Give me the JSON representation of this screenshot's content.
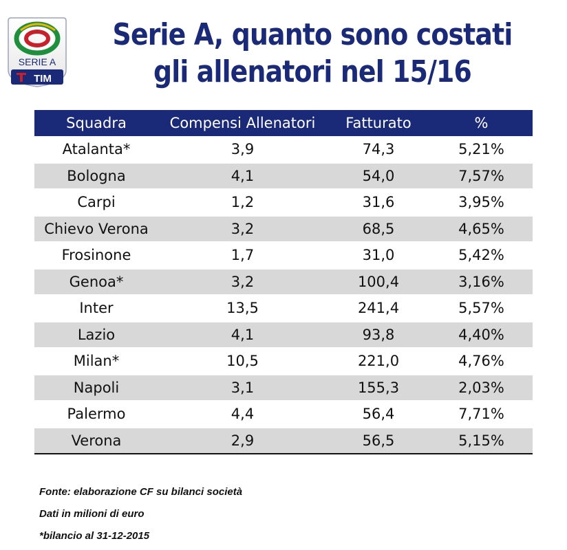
{
  "header": {
    "title_line1": "Serie A, quanto sono costati",
    "title_line2": "gli allenatori nel 15/16",
    "logo_text": "SERIE A",
    "logo_sponsor": "TIM"
  },
  "chart_data": {
    "type": "table",
    "columns": [
      "Squadra",
      "Compensi Allenatori",
      "Fatturato",
      "%"
    ],
    "rows": [
      [
        "Atalanta*",
        "3,9",
        "74,3",
        "5,21%"
      ],
      [
        "Bologna",
        "4,1",
        "54,0",
        "7,57%"
      ],
      [
        "Carpi",
        "1,2",
        "31,6",
        "3,95%"
      ],
      [
        "Chievo Verona",
        "3,2",
        "68,5",
        "4,65%"
      ],
      [
        "Frosinone",
        "1,7",
        "31,0",
        "5,42%"
      ],
      [
        "Genoa*",
        "3,2",
        "100,4",
        "3,16%"
      ],
      [
        "Inter",
        "13,5",
        "241,4",
        "5,57%"
      ],
      [
        "Lazio",
        "4,1",
        "93,8",
        "4,40%"
      ],
      [
        "Milan*",
        "10,5",
        "221,0",
        "4,76%"
      ],
      [
        "Napoli",
        "3,1",
        "155,3",
        "2,03%"
      ],
      [
        "Palermo",
        "4,4",
        "56,4",
        "7,71%"
      ],
      [
        "Verona",
        "2,9",
        "56,5",
        "5,15%"
      ]
    ]
  },
  "notes": [
    "Fonte: elaborazione CF su bilanci società",
    "Dati in milioni di euro",
    "*bilancio al 31-12-2015"
  ],
  "colors": {
    "header_bg": "#1b2a78",
    "stripe": "#d8d8d8"
  }
}
